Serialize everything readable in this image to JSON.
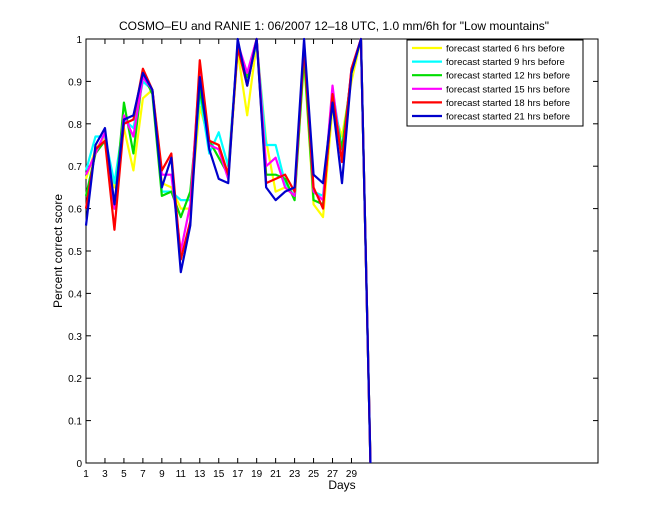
{
  "chart_data": {
    "type": "line",
    "title": "COSMO–EU and RANIE 1: 06/2007 12–18 UTC, 1.0 mm/6h for \"Low mountains\"",
    "xlabel": "Days",
    "ylabel": "Percent correct score",
    "xlim": [
      1,
      55
    ],
    "ylim": [
      0,
      1
    ],
    "x_ticks": [
      1,
      3,
      5,
      7,
      9,
      11,
      13,
      15,
      17,
      19,
      21,
      23,
      25,
      27,
      29
    ],
    "y_ticks": [
      0,
      0.1,
      0.2,
      0.3,
      0.4,
      0.5,
      0.6,
      0.7,
      0.8,
      0.9,
      1
    ],
    "x_tick_labels": [
      "1",
      "3",
      "5",
      "7",
      "9",
      "11",
      "13",
      "15",
      "17",
      "19",
      "21",
      "23",
      "25",
      "27",
      "29"
    ],
    "y_tick_labels": [
      "0",
      "0.1",
      "0.2",
      "0.3",
      "0.4",
      "0.5",
      "0.6",
      "0.7",
      "0.8",
      "0.9",
      "1"
    ],
    "grid": false,
    "legend_position": "top-right",
    "x": [
      1,
      2,
      3,
      4,
      5,
      6,
      7,
      8,
      9,
      10,
      11,
      12,
      13,
      14,
      15,
      16,
      17,
      18,
      19,
      20,
      21,
      22,
      23,
      24,
      25,
      26,
      27,
      28,
      29,
      30,
      31
    ],
    "series": [
      {
        "name": "forecast started 6 hrs before",
        "color": "#ffff00",
        "values": [
          0.67,
          0.74,
          0.77,
          0.65,
          0.79,
          0.69,
          0.86,
          0.88,
          0.66,
          0.65,
          0.6,
          0.6,
          0.84,
          0.76,
          0.75,
          0.67,
          0.97,
          0.82,
          0.99,
          0.76,
          0.64,
          0.65,
          0.63,
          0.95,
          0.61,
          0.58,
          0.84,
          0.77,
          0.9,
          1.0,
          0.0
        ]
      },
      {
        "name": "forecast started 9 hrs before",
        "color": "#00ffff",
        "values": [
          0.69,
          0.77,
          0.77,
          0.66,
          0.81,
          0.79,
          0.9,
          0.88,
          0.64,
          0.64,
          0.62,
          0.62,
          0.87,
          0.73,
          0.78,
          0.7,
          0.98,
          0.9,
          0.99,
          0.75,
          0.75,
          0.66,
          0.63,
          0.97,
          0.64,
          0.63,
          0.88,
          0.74,
          0.92,
          1.0,
          0.0
        ]
      },
      {
        "name": "forecast started 12 hrs before",
        "color": "#00dd00",
        "values": [
          0.63,
          0.73,
          0.76,
          0.6,
          0.85,
          0.73,
          0.92,
          0.87,
          0.63,
          0.64,
          0.58,
          0.64,
          0.88,
          0.76,
          0.72,
          0.68,
          0.98,
          0.91,
          1.0,
          0.68,
          0.68,
          0.67,
          0.62,
          0.96,
          0.62,
          0.61,
          0.86,
          0.74,
          0.92,
          1.0,
          0.0
        ]
      },
      {
        "name": "forecast started 15 hrs before",
        "color": "#ff00ff",
        "values": [
          0.68,
          0.73,
          0.78,
          0.6,
          0.82,
          0.77,
          0.91,
          0.88,
          0.68,
          0.68,
          0.5,
          0.61,
          0.93,
          0.75,
          0.74,
          0.67,
          0.99,
          0.92,
          1.0,
          0.7,
          0.72,
          0.65,
          0.63,
          0.99,
          0.64,
          0.62,
          0.89,
          0.71,
          0.93,
          1.0,
          0.0
        ]
      },
      {
        "name": "forecast started 18 hrs before",
        "color": "#ff0000",
        "values": [
          0.6,
          0.74,
          0.76,
          0.55,
          0.8,
          0.81,
          0.93,
          0.88,
          0.69,
          0.73,
          0.48,
          0.57,
          0.95,
          0.76,
          0.75,
          0.68,
          0.98,
          0.89,
          1.0,
          0.66,
          0.67,
          0.68,
          0.64,
          0.98,
          0.65,
          0.6,
          0.87,
          0.71,
          0.93,
          1.0,
          0.0
        ]
      },
      {
        "name": "forecast started 21 hrs before",
        "color": "#0000cc",
        "values": [
          0.56,
          0.75,
          0.79,
          0.61,
          0.81,
          0.82,
          0.92,
          0.88,
          0.65,
          0.72,
          0.45,
          0.56,
          0.91,
          0.74,
          0.67,
          0.66,
          1.0,
          0.89,
          1.0,
          0.65,
          0.62,
          0.64,
          0.65,
          1.0,
          0.68,
          0.66,
          0.85,
          0.66,
          0.92,
          1.0,
          0.0
        ]
      }
    ]
  }
}
